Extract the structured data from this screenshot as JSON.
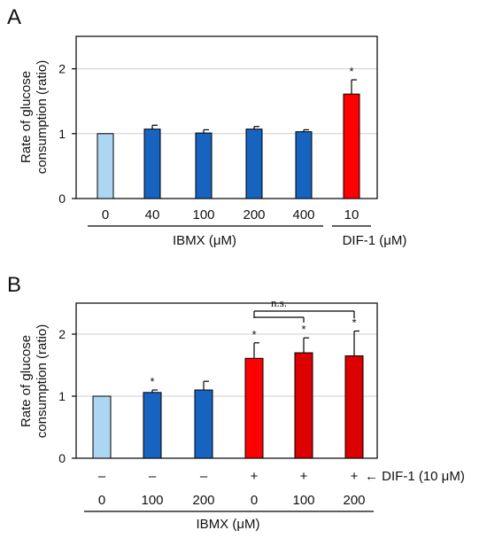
{
  "chart_data": [
    {
      "type": "bar",
      "panel": "A",
      "ylabel_lines": [
        "Rate of glucose",
        "consumption (ratio)"
      ],
      "ylim": [
        0,
        2.5
      ],
      "yticks": [
        "0",
        "1",
        "2"
      ],
      "categories": [
        "0",
        "40",
        "100",
        "200",
        "400",
        "10"
      ],
      "values": [
        1.0,
        1.07,
        1.01,
        1.07,
        1.03,
        1.61
      ],
      "errors": [
        0.0,
        0.06,
        0.05,
        0.04,
        0.03,
        0.22
      ],
      "colors": [
        "#add6f2",
        "#1663c0",
        "#1663c0",
        "#1663c0",
        "#1663c0",
        "#ff0000"
      ],
      "significance": [
        "",
        "",
        "",
        "",
        "",
        "*"
      ],
      "groups": [
        {
          "label": "IBMX (μM)",
          "from": 0,
          "to": 4
        },
        {
          "label": "DIF-1 (μM)",
          "from": 5,
          "to": 5
        }
      ],
      "grid": true
    },
    {
      "type": "bar",
      "panel": "B",
      "ylabel_lines": [
        "Rate of glucose",
        "consumption (ratio)"
      ],
      "ylim": [
        0,
        2.5
      ],
      "yticks": [
        "0",
        "1",
        "2"
      ],
      "row1": [
        "–",
        "–",
        "–",
        "+",
        "+",
        "+"
      ],
      "row1_annotation": "← DIF-1 (10 μM)",
      "categories": [
        "0",
        "100",
        "200",
        "0",
        "100",
        "200"
      ],
      "values": [
        1.0,
        1.06,
        1.1,
        1.61,
        1.7,
        1.65
      ],
      "errors": [
        0.0,
        0.04,
        0.14,
        0.25,
        0.24,
        0.4
      ],
      "colors": [
        "#add6f2",
        "#1663c0",
        "#1663c0",
        "#ff0000",
        "#dd0000",
        "#dd0000"
      ],
      "significance": [
        "",
        "*",
        "",
        "*",
        "*",
        "*"
      ],
      "groups": [
        {
          "label": "IBMX (μM)",
          "from": 0,
          "to": 5
        }
      ],
      "bracket": {
        "label": "n.s.",
        "from": 3,
        "to": 5,
        "mid": 4
      },
      "grid": true
    }
  ]
}
